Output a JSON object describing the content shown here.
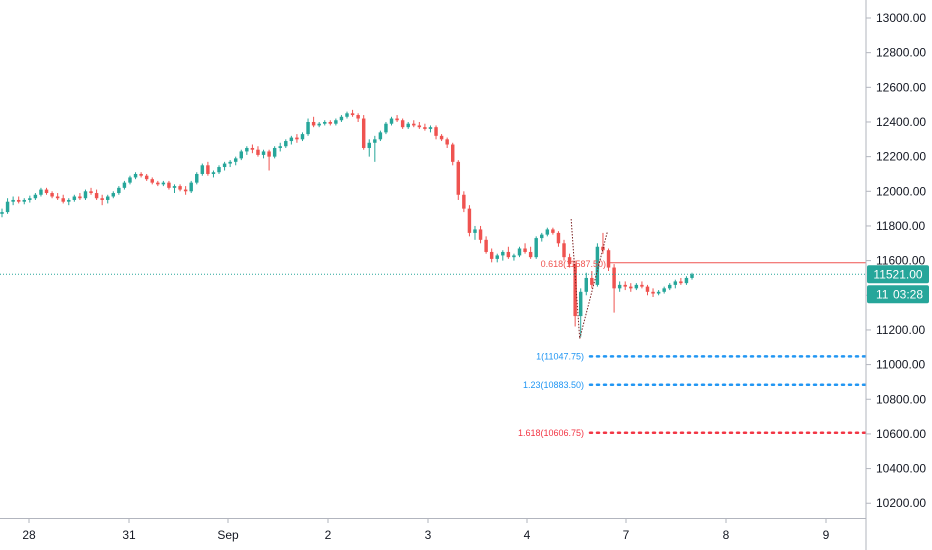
{
  "chart_data": {
    "type": "candlestick",
    "instrument_hint": "index futures, hourly candles",
    "y_axis": {
      "min": 10100,
      "max": 13000,
      "ticks": [
        "13000.00",
        "12800.00",
        "12600.00",
        "12400.00",
        "12200.00",
        "12000.00",
        "11800.00",
        "11600.00",
        "11400.00",
        "11200.00",
        "11000.00",
        "10800.00",
        "10600.00",
        "10400.00",
        "10200.00"
      ],
      "position": "right"
    },
    "x_axis": {
      "labels": [
        "28",
        "31",
        "Sep",
        "2",
        "3",
        "4",
        "7",
        "8",
        "9"
      ]
    },
    "last_price": {
      "label": "11521.00",
      "value": 11521,
      "countdown": "03:28",
      "color": "#26a69a"
    },
    "fib_levels": [
      {
        "label": "0.618(11587.50)",
        "value": 11587.5,
        "color": "#ef5350",
        "style": "solid"
      },
      {
        "label": "1(11047.75)",
        "value": 11047.75,
        "color": "#2196f3",
        "style": "dotted"
      },
      {
        "label": "1.23(10883.50)",
        "value": 10883.5,
        "color": "#2196f3",
        "style": "dotted"
      },
      {
        "label": "1.618(10606.75)",
        "value": 10606.75,
        "color": "#f23645",
        "style": "dotted"
      }
    ],
    "colors": {
      "up": "#26a69a",
      "down": "#ef5350",
      "grid": "#eef0f3",
      "axis_line": "#b2b5be"
    },
    "grid": false,
    "candles_ohlc": [
      [
        11870,
        11900,
        11850,
        11880
      ],
      [
        11880,
        11960,
        11870,
        11940
      ],
      [
        11940,
        11970,
        11920,
        11950
      ],
      [
        11950,
        11970,
        11930,
        11940
      ],
      [
        11940,
        11960,
        11925,
        11950
      ],
      [
        11950,
        11975,
        11935,
        11960
      ],
      [
        11960,
        11990,
        11950,
        11980
      ],
      [
        11980,
        12020,
        11970,
        12010
      ],
      [
        12010,
        12020,
        11980,
        11990
      ],
      [
        11990,
        12000,
        11960,
        11970
      ],
      [
        11970,
        11990,
        11950,
        11960
      ],
      [
        11960,
        11980,
        11930,
        11940
      ],
      [
        11940,
        11960,
        11920,
        11950
      ],
      [
        11950,
        11980,
        11940,
        11970
      ],
      [
        11970,
        11990,
        11950,
        11960
      ],
      [
        11960,
        12010,
        11950,
        12000
      ],
      [
        12000,
        12020,
        11980,
        11990
      ],
      [
        11990,
        12010,
        11950,
        11960
      ],
      [
        11960,
        11980,
        11920,
        11950
      ],
      [
        11950,
        11980,
        11930,
        11970
      ],
      [
        11970,
        12000,
        11960,
        11990
      ],
      [
        11990,
        12030,
        11980,
        12020
      ],
      [
        12020,
        12060,
        12010,
        12050
      ],
      [
        12050,
        12090,
        12040,
        12080
      ],
      [
        12080,
        12110,
        12070,
        12100
      ],
      [
        12100,
        12110,
        12080,
        12090
      ],
      [
        12090,
        12100,
        12060,
        12070
      ],
      [
        12070,
        12080,
        12040,
        12050
      ],
      [
        12050,
        12060,
        12030,
        12040
      ],
      [
        12040,
        12060,
        12030,
        12050
      ],
      [
        12050,
        12060,
        12010,
        12020
      ],
      [
        12020,
        12040,
        11990,
        12030
      ],
      [
        12030,
        12040,
        12000,
        12010
      ],
      [
        12010,
        12030,
        11980,
        12000
      ],
      [
        12000,
        12060,
        11990,
        12050
      ],
      [
        12050,
        12110,
        12040,
        12100
      ],
      [
        12100,
        12160,
        12090,
        12150
      ],
      [
        12150,
        12170,
        12090,
        12100
      ],
      [
        12100,
        12120,
        12080,
        12110
      ],
      [
        12110,
        12150,
        12100,
        12140
      ],
      [
        12140,
        12170,
        12120,
        12160
      ],
      [
        12160,
        12180,
        12140,
        12170
      ],
      [
        12170,
        12200,
        12150,
        12190
      ],
      [
        12190,
        12240,
        12180,
        12230
      ],
      [
        12230,
        12260,
        12210,
        12250
      ],
      [
        12250,
        12270,
        12220,
        12240
      ],
      [
        12240,
        12260,
        12200,
        12210
      ],
      [
        12210,
        12240,
        12190,
        12230
      ],
      [
        12230,
        12240,
        12120,
        12200
      ],
      [
        12200,
        12260,
        12190,
        12250
      ],
      [
        12250,
        12280,
        12230,
        12260
      ],
      [
        12260,
        12300,
        12250,
        12290
      ],
      [
        12290,
        12320,
        12270,
        12310
      ],
      [
        12310,
        12330,
        12280,
        12300
      ],
      [
        12300,
        12340,
        12290,
        12330
      ],
      [
        12330,
        12420,
        12320,
        12400
      ],
      [
        12400,
        12430,
        12370,
        12380
      ],
      [
        12380,
        12400,
        12370,
        12390
      ],
      [
        12390,
        12410,
        12380,
        12400
      ],
      [
        12400,
        12410,
        12380,
        12390
      ],
      [
        12390,
        12420,
        12380,
        12410
      ],
      [
        12410,
        12440,
        12400,
        12430
      ],
      [
        12430,
        12460,
        12420,
        12450
      ],
      [
        12450,
        12470,
        12430,
        12440
      ],
      [
        12440,
        12450,
        12400,
        12420
      ],
      [
        12420,
        12440,
        12240,
        12250
      ],
      [
        12250,
        12300,
        12200,
        12280
      ],
      [
        12280,
        12320,
        12170,
        12300
      ],
      [
        12300,
        12350,
        12290,
        12340
      ],
      [
        12340,
        12400,
        12330,
        12390
      ],
      [
        12390,
        12430,
        12380,
        12420
      ],
      [
        12420,
        12440,
        12400,
        12410
      ],
      [
        12410,
        12420,
        12360,
        12370
      ],
      [
        12370,
        12400,
        12360,
        12390
      ],
      [
        12390,
        12410,
        12370,
        12380
      ],
      [
        12380,
        12400,
        12360,
        12370
      ],
      [
        12370,
        12390,
        12350,
        12360
      ],
      [
        12360,
        12380,
        12340,
        12370
      ],
      [
        12370,
        12380,
        12300,
        12320
      ],
      [
        12320,
        12330,
        12290,
        12300
      ],
      [
        12300,
        12310,
        12250,
        12270
      ],
      [
        12270,
        12280,
        12150,
        12170
      ],
      [
        12170,
        12180,
        11950,
        11980
      ],
      [
        11980,
        12000,
        11880,
        11900
      ],
      [
        11900,
        11920,
        11740,
        11760
      ],
      [
        11760,
        11800,
        11720,
        11780
      ],
      [
        11780,
        11800,
        11700,
        11720
      ],
      [
        11720,
        11740,
        11640,
        11650
      ],
      [
        11650,
        11670,
        11590,
        11610
      ],
      [
        11610,
        11640,
        11590,
        11630
      ],
      [
        11630,
        11660,
        11600,
        11650
      ],
      [
        11650,
        11680,
        11610,
        11620
      ],
      [
        11620,
        11640,
        11600,
        11630
      ],
      [
        11630,
        11680,
        11620,
        11670
      ],
      [
        11670,
        11700,
        11640,
        11650
      ],
      [
        11650,
        11680,
        11610,
        11620
      ],
      [
        11620,
        11740,
        11610,
        11730
      ],
      [
        11730,
        11760,
        11710,
        11750
      ],
      [
        11750,
        11790,
        11740,
        11780
      ],
      [
        11780,
        11790,
        11750,
        11760
      ],
      [
        11760,
        11770,
        11680,
        11700
      ],
      [
        11700,
        11720,
        11600,
        11620
      ],
      [
        11620,
        11640,
        11560,
        11580
      ],
      [
        11580,
        11600,
        11220,
        11280
      ],
      [
        11280,
        11440,
        11160,
        11420
      ],
      [
        11420,
        11530,
        11400,
        11500
      ],
      [
        11500,
        11540,
        11440,
        11460
      ],
      [
        11460,
        11700,
        11450,
        11680
      ],
      [
        11680,
        11760,
        11640,
        11660
      ],
      [
        11660,
        11670,
        11540,
        11560
      ],
      [
        11560,
        11580,
        11300,
        11440
      ],
      [
        11440,
        11480,
        11420,
        11460
      ],
      [
        11460,
        11480,
        11430,
        11450
      ],
      [
        11450,
        11470,
        11420,
        11440
      ],
      [
        11440,
        11470,
        11430,
        11460
      ],
      [
        11460,
        11480,
        11440,
        11450
      ],
      [
        11450,
        11460,
        11400,
        11420
      ],
      [
        11420,
        11440,
        11390,
        11410
      ],
      [
        11410,
        11430,
        11400,
        11420
      ],
      [
        11420,
        11450,
        11410,
        11440
      ],
      [
        11440,
        11470,
        11430,
        11460
      ],
      [
        11460,
        11490,
        11440,
        11480
      ],
      [
        11480,
        11500,
        11460,
        11470
      ],
      [
        11470,
        11510,
        11460,
        11500
      ],
      [
        11500,
        11530,
        11490,
        11521
      ]
    ]
  }
}
